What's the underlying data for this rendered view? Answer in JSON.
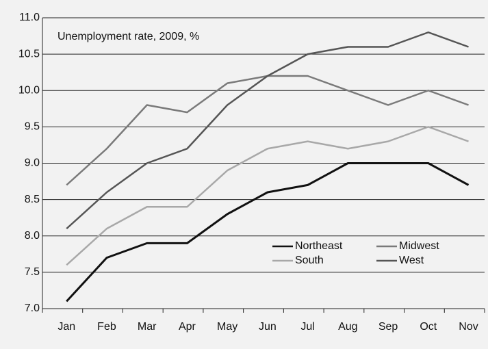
{
  "chart_data": {
    "type": "line",
    "title": "Unemployment rate, 2009, %",
    "categories": [
      "Jan",
      "Feb",
      "Mar",
      "Apr",
      "May",
      "Jun",
      "Jul",
      "Aug",
      "Sep",
      "Oct",
      "Nov"
    ],
    "series": [
      {
        "name": "Northeast",
        "color": "#111111",
        "values": [
          7.1,
          7.7,
          7.9,
          7.9,
          8.3,
          8.6,
          8.7,
          9.0,
          9.0,
          9.0,
          8.7
        ]
      },
      {
        "name": "Midwest",
        "color": "#7a7a7a",
        "values": [
          8.7,
          9.2,
          9.8,
          9.7,
          10.1,
          10.2,
          10.2,
          10.0,
          9.8,
          10.0,
          9.8
        ]
      },
      {
        "name": "South",
        "color": "#a8a8a8",
        "values": [
          7.6,
          8.1,
          8.4,
          8.4,
          8.9,
          9.2,
          9.3,
          9.2,
          9.3,
          9.5,
          9.3
        ]
      },
      {
        "name": "West",
        "color": "#555555",
        "values": [
          8.1,
          8.6,
          9.0,
          9.2,
          9.8,
          10.2,
          10.5,
          10.6,
          10.6,
          10.8,
          10.6
        ]
      }
    ],
    "ylim": [
      7,
      11
    ],
    "yticks": [
      {
        "value": 7,
        "label": "7.0"
      },
      7.5,
      {
        "value": 8,
        "label": "8.0"
      },
      8.5,
      {
        "value": 9,
        "label": "9.0"
      },
      9.5,
      {
        "value": 10,
        "label": "10.0"
      },
      10.5,
      {
        "value": 11,
        "label": "11.0"
      }
    ],
    "grid": true
  }
}
